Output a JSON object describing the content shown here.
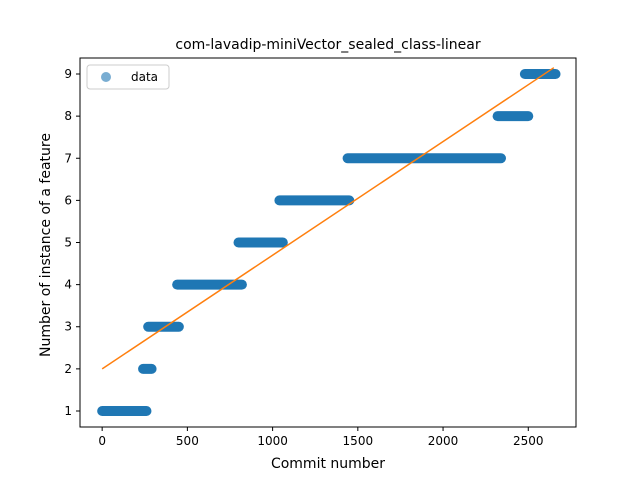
{
  "chart_data": {
    "type": "scatter",
    "title": "com-lavadip-miniVector_sealed_class-linear",
    "xlabel": "Commit number",
    "ylabel": "Number of instance of a feature",
    "xlim": [
      -130,
      2780
    ],
    "ylim": [
      0.62,
      9.38
    ],
    "xticks": [
      0,
      500,
      1000,
      1500,
      2000,
      2500
    ],
    "yticks": [
      1,
      2,
      3,
      4,
      5,
      6,
      7,
      8,
      9
    ],
    "grid": false,
    "legend": {
      "placement": "top-left",
      "entries": [
        "data"
      ]
    },
    "series": [
      {
        "name": "data",
        "kind": "scatter",
        "color": "#1f77b4",
        "segments": [
          {
            "x_start": 0,
            "x_end": 260,
            "y": 1
          },
          {
            "x_start": 240,
            "x_end": 290,
            "y": 2
          },
          {
            "x_start": 270,
            "x_end": 450,
            "y": 3
          },
          {
            "x_start": 440,
            "x_end": 820,
            "y": 4
          },
          {
            "x_start": 800,
            "x_end": 1060,
            "y": 5
          },
          {
            "x_start": 1040,
            "x_end": 1450,
            "y": 6
          },
          {
            "x_start": 1440,
            "x_end": 2340,
            "y": 7
          },
          {
            "x_start": 2320,
            "x_end": 2500,
            "y": 8
          },
          {
            "x_start": 2480,
            "x_end": 2660,
            "y": 9
          }
        ]
      },
      {
        "name": "",
        "kind": "line",
        "color": "#ff7f0e",
        "points": [
          {
            "x": 0,
            "y": 2.0
          },
          {
            "x": 2650,
            "y": 9.15
          }
        ]
      }
    ]
  }
}
